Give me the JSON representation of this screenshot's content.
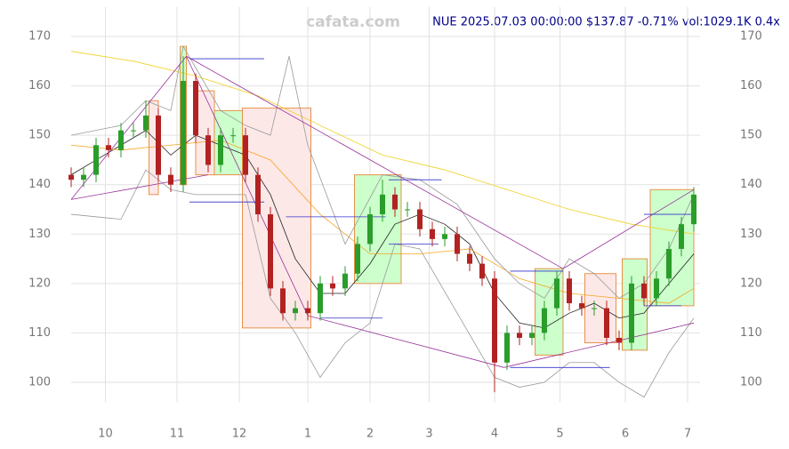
{
  "chart_data": {
    "type": "candlestick",
    "title": "NUE 2025.07.03 00:00:00 $137.87 -0.71% vol:1029.1K 0.4x",
    "watermark": "cafata.com",
    "up_color": "#2a9d2a",
    "down_color": "#b22222",
    "xlim": [
      0,
      202
    ],
    "xticks": [
      {
        "value": 11,
        "label": "10"
      },
      {
        "value": 34,
        "label": "11"
      },
      {
        "value": 54,
        "label": "12"
      },
      {
        "value": 76,
        "label": "1"
      },
      {
        "value": 96,
        "label": "2"
      },
      {
        "value": 115,
        "label": "3"
      },
      {
        "value": 136,
        "label": "4"
      },
      {
        "value": 157,
        "label": "5"
      },
      {
        "value": 178,
        "label": "6"
      },
      {
        "value": 198,
        "label": "7"
      }
    ],
    "ylim": [
      96,
      176
    ],
    "yticks": [
      100,
      110,
      120,
      130,
      140,
      150,
      160,
      170
    ],
    "grid": true,
    "x": [
      0,
      4,
      8,
      12,
      16,
      20,
      24,
      28,
      32,
      36,
      40,
      44,
      48,
      52,
      56,
      60,
      64,
      68,
      72,
      76,
      80,
      84,
      88,
      92,
      96,
      100,
      104,
      108,
      112,
      116,
      120,
      124,
      128,
      132,
      136,
      140,
      144,
      148,
      152,
      156,
      160,
      164,
      168,
      172,
      176,
      180,
      184,
      188,
      192,
      196,
      200
    ],
    "open": [
      142,
      141,
      142,
      148,
      147,
      151,
      151,
      154,
      142,
      140,
      161,
      150,
      144,
      150,
      150,
      142,
      134,
      119,
      114,
      115,
      114,
      120,
      119,
      122,
      128,
      134,
      138,
      135,
      135,
      131,
      129,
      130,
      126,
      124,
      121,
      104,
      110,
      109,
      110,
      115,
      121,
      116,
      115,
      115,
      109,
      108,
      120,
      117,
      121,
      127,
      132
    ],
    "high": [
      143.5,
      143.5,
      149.5,
      149.5,
      152.5,
      152.5,
      157,
      155.5,
      143.5,
      166,
      162.5,
      151.5,
      151.5,
      151.5,
      151.5,
      143.5,
      135.5,
      120.5,
      116.5,
      116.5,
      121.5,
      121.5,
      123.5,
      129.5,
      135.5,
      141,
      139.5,
      136.5,
      136.5,
      132.5,
      131.5,
      131.5,
      127.5,
      125.5,
      122.5,
      111.5,
      111.5,
      111.5,
      116.5,
      122.5,
      122.5,
      117.5,
      116.5,
      116.5,
      110.5,
      121.5,
      121.5,
      122.5,
      128.5,
      133.5,
      139.5
    ],
    "low": [
      139.5,
      139.5,
      140.5,
      145.5,
      145.5,
      149.5,
      149.5,
      140.5,
      138.5,
      138.5,
      148.5,
      142.5,
      142.5,
      148.5,
      140.5,
      132.5,
      117.5,
      112.5,
      112.5,
      112.5,
      112.5,
      117.5,
      117.5,
      120.5,
      126.5,
      132.5,
      133.5,
      133.5,
      129.5,
      127.5,
      127.5,
      124.5,
      122.5,
      119.5,
      98,
      102.5,
      107.5,
      107.5,
      108.5,
      113.5,
      114.5,
      113.5,
      113.5,
      107.5,
      106.5,
      106.5,
      115.5,
      115.5,
      119.5,
      125.5,
      130.5
    ],
    "close": [
      141,
      142,
      148,
      147,
      151,
      151,
      154,
      142,
      140,
      161,
      150,
      144,
      150,
      150,
      142,
      134,
      119,
      114,
      115,
      114,
      120,
      119,
      122,
      128,
      134,
      138,
      135,
      135,
      131,
      129,
      130,
      126,
      124,
      121,
      104,
      110,
      109,
      110,
      115,
      121,
      116,
      115,
      115,
      109,
      108,
      120,
      117,
      121,
      127,
      132,
      138
    ],
    "lines": [
      {
        "color": "#222222",
        "x": [
          0,
          8,
          16,
          24,
          32,
          40,
          48,
          56,
          64,
          72,
          80,
          88,
          96,
          104,
          112,
          120,
          128,
          136,
          144,
          152,
          160,
          168,
          176,
          184,
          192,
          200
        ],
        "values": [
          142,
          145,
          148,
          151,
          146,
          150,
          148,
          146,
          138,
          125,
          118,
          118,
          124,
          132,
          134,
          132,
          128,
          118,
          112,
          111,
          114,
          116,
          113,
          114,
          120,
          126
        ]
      },
      {
        "color": "#f5a623",
        "x": [
          0,
          16,
          32,
          48,
          64,
          80,
          96,
          112,
          128,
          144,
          160,
          176,
          192,
          200
        ],
        "values": [
          148,
          147,
          148,
          149,
          145,
          134,
          126,
          126,
          127,
          121,
          118,
          117,
          116,
          119
        ]
      },
      {
        "color": "#f0d020",
        "x": [
          0,
          20,
          40,
          60,
          80,
          100,
          120,
          140,
          160,
          180,
          200
        ],
        "values": [
          167,
          165,
          162,
          158,
          152,
          146,
          143,
          139,
          135,
          132,
          130
        ]
      },
      {
        "color": "#999999",
        "x": [
          0,
          16,
          24,
          32,
          36,
          48,
          56,
          64,
          70,
          76,
          88,
          100,
          112,
          124,
          136,
          144,
          152,
          160,
          168,
          176,
          184,
          192,
          200
        ],
        "values": [
          150,
          152,
          157,
          155,
          168,
          155,
          152,
          150,
          166,
          148,
          128,
          142,
          141,
          136,
          125,
          120,
          117,
          125,
          122,
          117,
          120,
          127,
          138
        ]
      },
      {
        "color": "#999999",
        "x": [
          0,
          16,
          24,
          32,
          40,
          56,
          64,
          72,
          80,
          88,
          96,
          104,
          112,
          124,
          136,
          144,
          152,
          160,
          168,
          176,
          184,
          192,
          200
        ],
        "values": [
          134,
          133,
          143,
          139,
          138,
          138,
          117,
          110,
          101,
          108,
          112,
          128,
          127,
          114,
          101,
          99,
          100,
          104,
          104,
          100,
          97,
          106,
          113
        ]
      }
    ],
    "boxes": [
      {
        "x": [
          25,
          28
        ],
        "y": [
          138,
          157
        ],
        "fill": "#fde8e8"
      },
      {
        "x": [
          35,
          37
        ],
        "y": [
          140,
          168
        ],
        "fill": "#ccffcc"
      },
      {
        "x": [
          40,
          46
        ],
        "y": [
          142,
          159
        ],
        "fill": "#fde8e8"
      },
      {
        "x": [
          46,
          55
        ],
        "y": [
          142,
          155
        ],
        "fill": "#ccffcc"
      },
      {
        "x": [
          55,
          77
        ],
        "y": [
          111,
          155.5
        ],
        "fill": "#fde8e8"
      },
      {
        "x": [
          91,
          106
        ],
        "y": [
          120,
          142
        ],
        "fill": "#ccffcc"
      },
      {
        "x": [
          149,
          158
        ],
        "y": [
          105.5,
          123
        ],
        "fill": "#ccffcc"
      },
      {
        "x": [
          165,
          175
        ],
        "y": [
          108,
          122
        ],
        "fill": "#fde8e8"
      },
      {
        "x": [
          177,
          185
        ],
        "y": [
          106.5,
          125
        ],
        "fill": "#ccffcc"
      },
      {
        "x": [
          186,
          200
        ],
        "y": [
          115.5,
          139
        ],
        "fill": "#ccffcc"
      }
    ],
    "segments": [
      {
        "color": "#993399",
        "x": [
          0,
          37
        ],
        "y": [
          137,
          166
        ]
      },
      {
        "color": "#993399",
        "x": [
          37,
          76
        ],
        "y": [
          166,
          113.5
        ]
      },
      {
        "color": "#993399",
        "x": [
          37,
          158
        ],
        "y": [
          166,
          123
        ]
      },
      {
        "color": "#993399",
        "x": [
          0,
          44
        ],
        "y": [
          137,
          142
        ]
      },
      {
        "color": "#993399",
        "x": [
          76,
          139
        ],
        "y": [
          113.5,
          103
        ]
      },
      {
        "color": "#993399",
        "x": [
          139,
          200
        ],
        "y": [
          103,
          112
        ]
      },
      {
        "color": "#993399",
        "x": [
          158,
          200
        ],
        "y": [
          123,
          139
        ]
      },
      {
        "color": "#3333cc",
        "x": [
          38,
          62
        ],
        "y": [
          165.5,
          165.5
        ]
      },
      {
        "color": "#3333cc",
        "x": [
          38,
          62
        ],
        "y": [
          136.5,
          136.5
        ]
      },
      {
        "color": "#3333cc",
        "x": [
          69,
          101
        ],
        "y": [
          133.5,
          133.5
        ]
      },
      {
        "color": "#3333cc",
        "x": [
          80,
          100
        ],
        "y": [
          113,
          113
        ]
      },
      {
        "color": "#3333cc",
        "x": [
          102,
          119
        ],
        "y": [
          141,
          141
        ]
      },
      {
        "color": "#3333cc",
        "x": [
          102,
          118
        ],
        "y": [
          128,
          128
        ]
      },
      {
        "color": "#3333cc",
        "x": [
          141,
          158
        ],
        "y": [
          122.5,
          122.5
        ]
      },
      {
        "color": "#3333cc",
        "x": [
          141,
          173
        ],
        "y": [
          103,
          103
        ]
      },
      {
        "color": "#3333cc",
        "x": [
          184,
          200
        ],
        "y": [
          134,
          134
        ]
      },
      {
        "color": "#3333cc",
        "x": [
          184,
          196
        ],
        "y": [
          115.5,
          115.5
        ]
      }
    ]
  }
}
